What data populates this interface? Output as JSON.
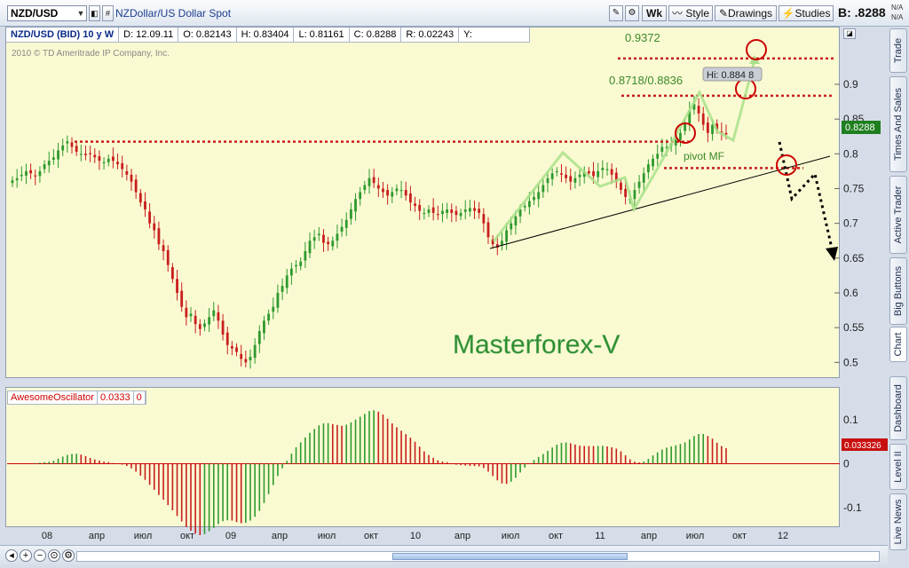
{
  "toolbar": {
    "symbol": "NZD/USD",
    "symbol_description": "NZDollar/US Dollar Spot",
    "period_button": "Wk",
    "style_button": "Style",
    "drawings_button": "Drawings",
    "studies_button": "Studies",
    "bid_label": "B: .8288",
    "na_top": "N/A",
    "na_bottom": "N/A"
  },
  "side_tabs": [
    "Trade",
    "Times And Sales",
    "Active Trader",
    "Big Buttons",
    "Chart",
    "Dashboard",
    "Level II",
    "Live News"
  ],
  "chart_header": {
    "title": "NZD/USD (BID) 10 y W",
    "date": "D: 12.09.11",
    "open": "O: 0.82143",
    "high": "H: 0.83404",
    "low": "L: 0.81161",
    "close": "C: 0.8288",
    "range": "R: 0.02243",
    "y": "Y:"
  },
  "copyright": "2010 © TD Ameritrade IP Company, Inc.",
  "indicator_header": {
    "name": "AwesomeOscillator",
    "value": "0.0333",
    "zero": "0"
  },
  "colors": {
    "up": "#2e9a2e",
    "down": "#c81e1e",
    "level_line": "#c81e1e",
    "pattern": "#a8e08a",
    "watermark": "#2a8a2a",
    "last_price_badge": "#1f7f1f",
    "ao_badge": "#c81010"
  },
  "chart_data": [
    {
      "type": "candlestick",
      "title": "NZD/USD (BID) 10 y W",
      "x_tick_labels": [
        "08",
        "апр",
        "июл",
        "окт",
        "09",
        "апр",
        "июл",
        "окт",
        "10",
        "апр",
        "июл",
        "окт",
        "11",
        "апр",
        "июл",
        "окт",
        "12"
      ],
      "y_ticks": [
        0.5,
        0.55,
        0.6,
        0.65,
        0.7,
        0.75,
        0.8,
        0.85,
        0.9
      ],
      "y_tick_labels": [
        "0.5",
        "0.55",
        "0.6",
        "0.65",
        "0.7",
        "0.75",
        "0.8",
        "0.85",
        "0.9"
      ],
      "ylim": [
        0.48,
        0.96
      ],
      "last_price": "0.8288",
      "series_close": [
        0.762,
        0.765,
        0.77,
        0.775,
        0.772,
        0.768,
        0.775,
        0.785,
        0.79,
        0.795,
        0.805,
        0.812,
        0.818,
        0.81,
        0.803,
        0.8,
        0.798,
        0.8,
        0.795,
        0.79,
        0.788,
        0.793,
        0.79,
        0.785,
        0.778,
        0.77,
        0.76,
        0.745,
        0.73,
        0.72,
        0.7,
        0.69,
        0.67,
        0.66,
        0.64,
        0.62,
        0.6,
        0.58,
        0.565,
        0.57,
        0.555,
        0.548,
        0.556,
        0.565,
        0.575,
        0.56,
        0.54,
        0.525,
        0.52,
        0.515,
        0.505,
        0.5,
        0.508,
        0.525,
        0.545,
        0.56,
        0.57,
        0.58,
        0.6,
        0.61,
        0.625,
        0.635,
        0.64,
        0.645,
        0.66,
        0.675,
        0.68,
        0.685,
        0.672,
        0.67,
        0.675,
        0.685,
        0.695,
        0.705,
        0.72,
        0.735,
        0.745,
        0.755,
        0.765,
        0.758,
        0.75,
        0.745,
        0.74,
        0.745,
        0.75,
        0.748,
        0.74,
        0.73,
        0.725,
        0.718,
        0.715,
        0.72,
        0.715,
        0.712,
        0.718,
        0.72,
        0.715,
        0.712,
        0.715,
        0.72,
        0.722,
        0.718,
        0.715,
        0.7,
        0.68,
        0.67,
        0.665,
        0.675,
        0.69,
        0.7,
        0.71,
        0.72,
        0.725,
        0.732,
        0.738,
        0.745,
        0.755,
        0.765,
        0.772,
        0.775,
        0.77,
        0.765,
        0.76,
        0.765,
        0.77,
        0.775,
        0.772,
        0.768,
        0.775,
        0.78,
        0.778,
        0.77,
        0.76,
        0.748,
        0.738,
        0.735,
        0.748,
        0.76,
        0.772,
        0.785,
        0.793,
        0.8,
        0.81,
        0.81,
        0.815,
        0.82,
        0.83,
        0.845,
        0.862,
        0.872,
        0.858,
        0.842,
        0.83,
        0.842,
        0.835,
        0.83,
        0.828
      ],
      "annotations": {
        "levels": [
          {
            "label": "0.9372",
            "value": 0.9372
          },
          {
            "label": "0.8718/0.8836",
            "value": 0.8836
          },
          {
            "value": 0.8175
          },
          {
            "value": 0.7795
          }
        ],
        "pivot_label": "pivot MF",
        "high_label": "Hi: 0.884 8",
        "watermark": "Masterforex-V"
      }
    },
    {
      "type": "bar",
      "title": "AwesomeOscillator",
      "y_ticks": [
        0.1,
        0,
        -0.1
      ],
      "y_tick_labels": [
        "0.1",
        "0",
        "-0.1"
      ],
      "ylim": [
        -0.14,
        0.13
      ],
      "last_value": "0.033326"
    }
  ]
}
